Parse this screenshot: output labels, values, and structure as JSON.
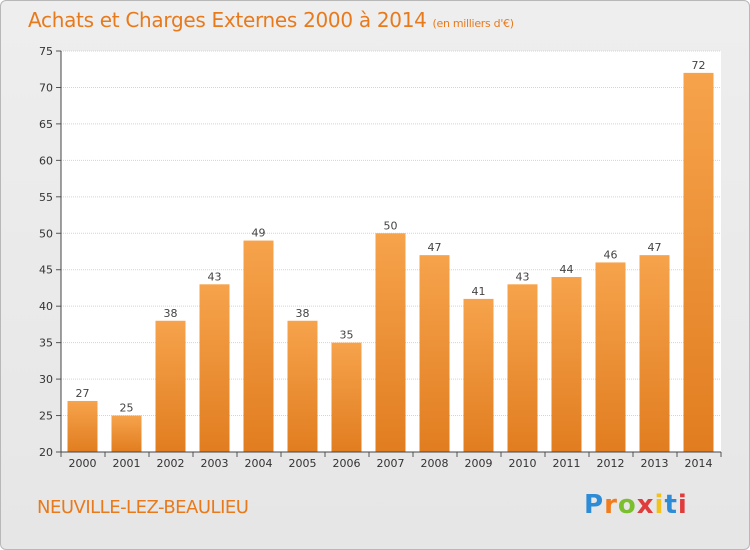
{
  "title": "Achats et Charges Externes 2000 à 2014",
  "subtitle": "(en milliers d'€)",
  "town": "NEUVILLE-LEZ-BEAULIEU",
  "logo": {
    "letters": [
      "P",
      "r",
      "o",
      "x",
      "i",
      "t",
      "i"
    ],
    "colors": [
      "#2e8bd6",
      "#f07c1d",
      "#7cbf2e",
      "#e03c3c",
      "#f2c21b",
      "#2e8bd6",
      "#e03c3c"
    ]
  },
  "colors": {
    "accent": "#e87a1c",
    "bar_light": "#f6a34c",
    "bar_dark": "#e17d20"
  },
  "chart_data": {
    "type": "bar",
    "categories": [
      "2000",
      "2001",
      "2002",
      "2003",
      "2004",
      "2005",
      "2006",
      "2007",
      "2008",
      "2009",
      "2010",
      "2011",
      "2012",
      "2013",
      "2014"
    ],
    "values": [
      27,
      25,
      38,
      43,
      49,
      38,
      35,
      50,
      47,
      41,
      43,
      44,
      46,
      47,
      72
    ],
    "ylim": [
      20,
      75
    ],
    "yticks": [
      20,
      25,
      30,
      35,
      40,
      45,
      50,
      55,
      60,
      65,
      70,
      75
    ],
    "grid": true,
    "data_labels": true
  }
}
